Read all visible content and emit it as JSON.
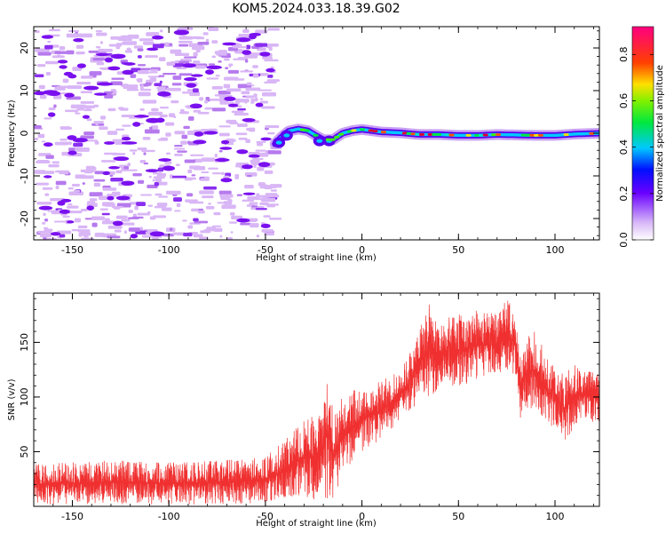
{
  "title": "KOM5.2024.033.18.39.G02",
  "chart_data": [
    {
      "type": "heatmap",
      "xlabel": "Height of straight line (km)",
      "ylabel": "Frequency (Hz)",
      "xlim": [
        -170,
        123
      ],
      "ylim": [
        -25,
        25
      ],
      "xticks": [
        -150,
        -100,
        -50,
        0,
        50,
        100
      ],
      "yticks": [
        -20,
        -10,
        0,
        10,
        20
      ],
      "xtick_labels": [
        "-150",
        "-100",
        "-50",
        "0",
        "50",
        "100"
      ],
      "ytick_labels": [
        "-20",
        "-10",
        "0",
        "10",
        "20"
      ],
      "noise_region_x": [
        -170,
        -47
      ],
      "signal_trace": [
        {
          "x": -45,
          "y": -2.5
        },
        {
          "x": -42,
          "y": -1.0
        },
        {
          "x": -38,
          "y": 0.5
        },
        {
          "x": -33,
          "y": 1.0
        },
        {
          "x": -28,
          "y": 0.6
        },
        {
          "x": -24,
          "y": -0.5
        },
        {
          "x": -20,
          "y": -1.5
        },
        {
          "x": -15,
          "y": -1.5
        },
        {
          "x": -10,
          "y": 0.0
        },
        {
          "x": -5,
          "y": 0.6
        },
        {
          "x": 0,
          "y": 0.9
        },
        {
          "x": 5,
          "y": 0.6
        },
        {
          "x": 10,
          "y": 0.3
        },
        {
          "x": 20,
          "y": 0.1
        },
        {
          "x": 30,
          "y": -0.3
        },
        {
          "x": 40,
          "y": -0.3
        },
        {
          "x": 50,
          "y": -0.5
        },
        {
          "x": 60,
          "y": -0.5
        },
        {
          "x": 70,
          "y": -0.3
        },
        {
          "x": 80,
          "y": -0.4
        },
        {
          "x": 90,
          "y": -0.5
        },
        {
          "x": 100,
          "y": -0.5
        },
        {
          "x": 110,
          "y": -0.2
        },
        {
          "x": 123,
          "y": 0.0
        }
      ],
      "colorbar": {
        "label": "Normalized spectral amplitude",
        "range": [
          0,
          0.92
        ],
        "ticks": [
          0.0,
          0.2,
          0.4,
          0.6,
          0.8
        ],
        "tick_labels": [
          "0.0",
          "0.2",
          "0.4",
          "0.6",
          "0.8"
        ],
        "colormap": "white-purple-blue-cyan-green-yellow-red-magenta"
      }
    },
    {
      "type": "line",
      "xlabel": "Height of straight line (km)",
      "ylabel": "SNR (v/v)",
      "xlim": [
        -170,
        123
      ],
      "ylim": [
        0,
        195
      ],
      "xticks": [
        -150,
        -100,
        -50,
        0,
        50,
        100
      ],
      "yticks": [
        50,
        100,
        150
      ],
      "xtick_labels": [
        "-150",
        "-100",
        "-50",
        "0",
        "50",
        "100"
      ],
      "ytick_labels": [
        "50",
        "100",
        "150"
      ],
      "color": "#f03030",
      "series": [
        {
          "envelope": [
            {
              "x": -170,
              "lo": 2,
              "hi": 38
            },
            {
              "x": -150,
              "lo": 2,
              "hi": 40
            },
            {
              "x": -130,
              "lo": 2,
              "hi": 42
            },
            {
              "x": -110,
              "lo": 2,
              "hi": 40
            },
            {
              "x": -90,
              "lo": 2,
              "hi": 40
            },
            {
              "x": -70,
              "lo": 2,
              "hi": 42
            },
            {
              "x": -50,
              "lo": 3,
              "hi": 45
            },
            {
              "x": -40,
              "lo": 8,
              "hi": 60
            },
            {
              "x": -30,
              "lo": 10,
              "hi": 80
            },
            {
              "x": -25,
              "lo": 5,
              "hi": 85
            },
            {
              "x": -20,
              "lo": 10,
              "hi": 95
            },
            {
              "x": -18,
              "lo": 5,
              "hi": 135
            },
            {
              "x": -15,
              "lo": 5,
              "hi": 85
            },
            {
              "x": -10,
              "lo": 30,
              "hi": 100
            },
            {
              "x": 0,
              "lo": 50,
              "hi": 110
            },
            {
              "x": 10,
              "lo": 60,
              "hi": 115
            },
            {
              "x": 20,
              "lo": 80,
              "hi": 125
            },
            {
              "x": 25,
              "lo": 85,
              "hi": 140
            },
            {
              "x": 30,
              "lo": 100,
              "hi": 165
            },
            {
              "x": 35,
              "lo": 95,
              "hi": 185
            },
            {
              "x": 40,
              "lo": 110,
              "hi": 170
            },
            {
              "x": 50,
              "lo": 110,
              "hi": 175
            },
            {
              "x": 60,
              "lo": 115,
              "hi": 180
            },
            {
              "x": 70,
              "lo": 120,
              "hi": 175
            },
            {
              "x": 75,
              "lo": 125,
              "hi": 190
            },
            {
              "x": 80,
              "lo": 120,
              "hi": 175
            },
            {
              "x": 82,
              "lo": 80,
              "hi": 140
            },
            {
              "x": 85,
              "lo": 90,
              "hi": 155
            },
            {
              "x": 90,
              "lo": 90,
              "hi": 160
            },
            {
              "x": 95,
              "lo": 75,
              "hi": 140
            },
            {
              "x": 100,
              "lo": 70,
              "hi": 125
            },
            {
              "x": 105,
              "lo": 60,
              "hi": 120
            },
            {
              "x": 110,
              "lo": 70,
              "hi": 130
            },
            {
              "x": 115,
              "lo": 80,
              "hi": 125
            },
            {
              "x": 123,
              "lo": 75,
              "hi": 120
            }
          ]
        }
      ]
    }
  ]
}
